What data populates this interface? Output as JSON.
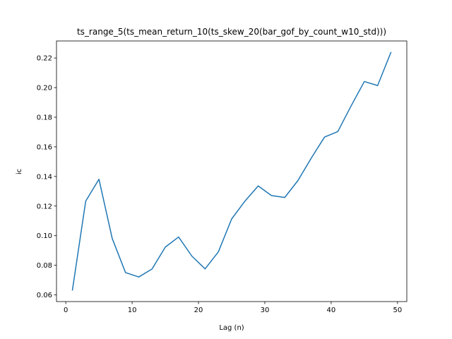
{
  "chart_data": {
    "type": "line",
    "title": "ts_range_5(ts_mean_return_10(ts_skew_20(bar_gof_by_count_w10_std)))",
    "xlabel": "Lag (n)",
    "ylabel": "ic",
    "xlim": [
      -1.4,
      51.4
    ],
    "ylim": [
      0.0555,
      0.2315
    ],
    "xticks": [
      0,
      10,
      20,
      30,
      40,
      50
    ],
    "xtick_labels": [
      "0",
      "10",
      "20",
      "30",
      "40",
      "50"
    ],
    "yticks": [
      0.06,
      0.08,
      0.1,
      0.12,
      0.14,
      0.16,
      0.18,
      0.2,
      0.22
    ],
    "ytick_labels": [
      "0.06",
      "0.08",
      "0.10",
      "0.12",
      "0.14",
      "0.16",
      "0.18",
      "0.20",
      "0.22"
    ],
    "grid": false,
    "series": [
      {
        "color": "#1f77b4",
        "x": [
          1,
          3,
          5,
          7,
          9,
          11,
          13,
          15,
          17,
          19,
          21,
          23,
          25,
          27,
          29,
          31,
          33,
          35,
          37,
          39,
          41,
          43,
          45,
          47,
          49
        ],
        "y": [
          0.0633,
          0.1233,
          0.1381,
          0.0981,
          0.0751,
          0.0721,
          0.0775,
          0.0923,
          0.0991,
          0.0862,
          0.0776,
          0.0891,
          0.1113,
          0.1233,
          0.1336,
          0.1271,
          0.1258,
          0.1373,
          0.1524,
          0.1666,
          0.1703,
          0.1876,
          0.2041,
          0.2014,
          0.2237
        ]
      }
    ]
  }
}
